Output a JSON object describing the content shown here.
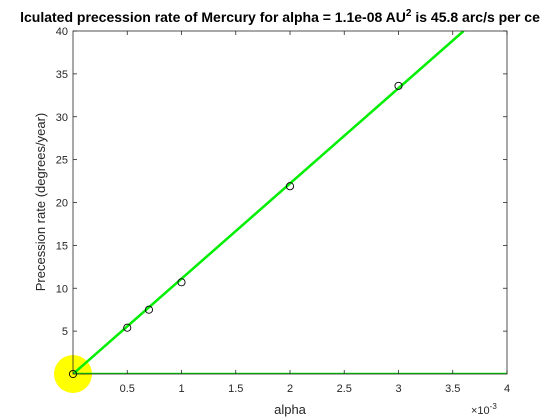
{
  "chart_data": {
    "type": "scatter",
    "title_prefix": "lculated precession rate of Mercury for alpha = 1.1e-08 AU",
    "title_sup": "2",
    "title_suffix": " is 45.8 arc/s per ce",
    "xlabel": "alpha",
    "ylabel": "Precession rate (degrees/year)",
    "x_multiplier_base": "×10",
    "x_multiplier_exp": "-3",
    "xlim": [
      0,
      0.004
    ],
    "ylim": [
      0,
      40
    ],
    "x_ticks": [
      0.0005,
      0.001,
      0.0015,
      0.002,
      0.0025,
      0.003,
      0.0035,
      0.004
    ],
    "x_tick_labels": [
      "0.5",
      "1",
      "1.5",
      "2",
      "2.5",
      "3",
      "3.5",
      "4"
    ],
    "y_ticks": [
      5,
      10,
      15,
      20,
      25,
      30,
      35,
      40
    ],
    "y_tick_labels": [
      "5",
      "10",
      "15",
      "20",
      "25",
      "30",
      "35",
      "40"
    ],
    "points": {
      "x": [
        0,
        0.0005,
        0.0007,
        0.001,
        0.002,
        0.003
      ],
      "y": [
        0,
        5.4,
        7.5,
        10.7,
        21.9,
        33.6
      ]
    },
    "fit_line": {
      "x": [
        0,
        0.0036
      ],
      "y": [
        0,
        40
      ]
    },
    "baseline": {
      "x": [
        0,
        0.004
      ],
      "y": [
        0,
        0
      ]
    },
    "highlight_point": {
      "x": 0,
      "y": 0
    },
    "grid": false,
    "colors": {
      "line": "#00ee00",
      "marker": "#000000",
      "highlight": "#ffff00",
      "axis": "#262626",
      "text": "#262626"
    }
  }
}
